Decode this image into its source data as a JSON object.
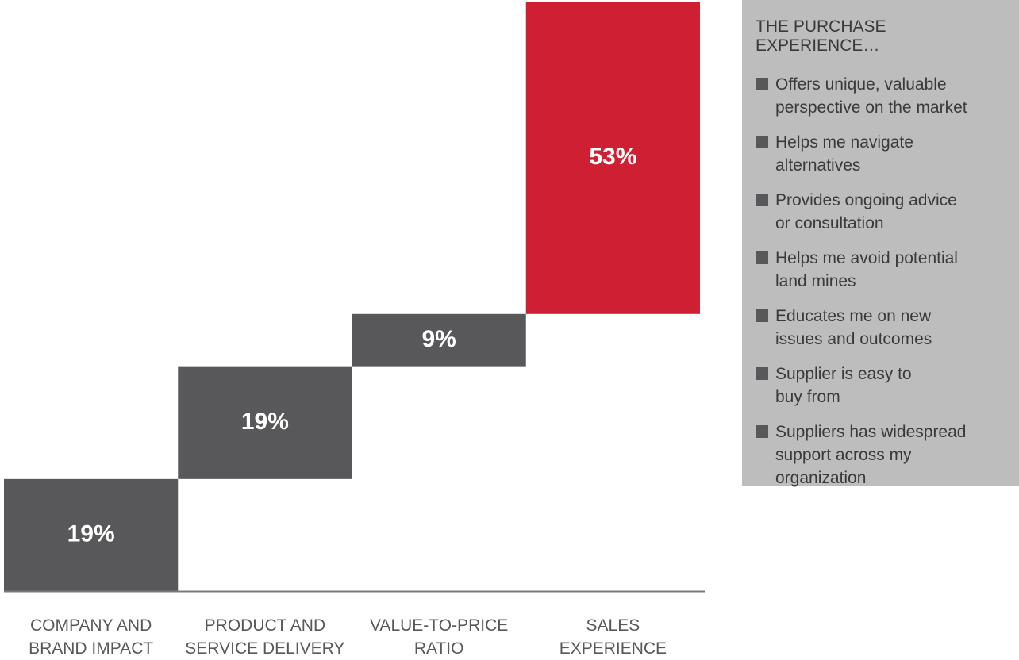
{
  "chart_data": {
    "type": "waterfall",
    "categories": [
      "COMPANY AND\nBRAND IMPACT",
      "PRODUCT AND\nSERVICE DELIVERY",
      "VALUE-TO-PRICE\nRATIO",
      "SALES\nEXPERIENCE"
    ],
    "values": [
      19,
      19,
      9,
      53
    ],
    "value_labels": [
      "19%",
      "19%",
      "9%",
      "53%"
    ],
    "colors": [
      "#58585a",
      "#58585a",
      "#58585a",
      "#cf1f32"
    ],
    "ylim": [
      0,
      100
    ],
    "legend": {
      "title": "THE PURCHASE EXPERIENCE…",
      "color": "#58585a",
      "items": [
        "Offers unique, valuable\nperspective on the market",
        "Helps me navigate\nalternatives",
        "Provides ongoing advice\nor consultation",
        "Helps me avoid potential\nland mines",
        "Educates me on new\nissues and outcomes",
        "Supplier is easy to\nbuy from",
        "Suppliers has widespread\nsupport across my\norganization"
      ]
    }
  }
}
